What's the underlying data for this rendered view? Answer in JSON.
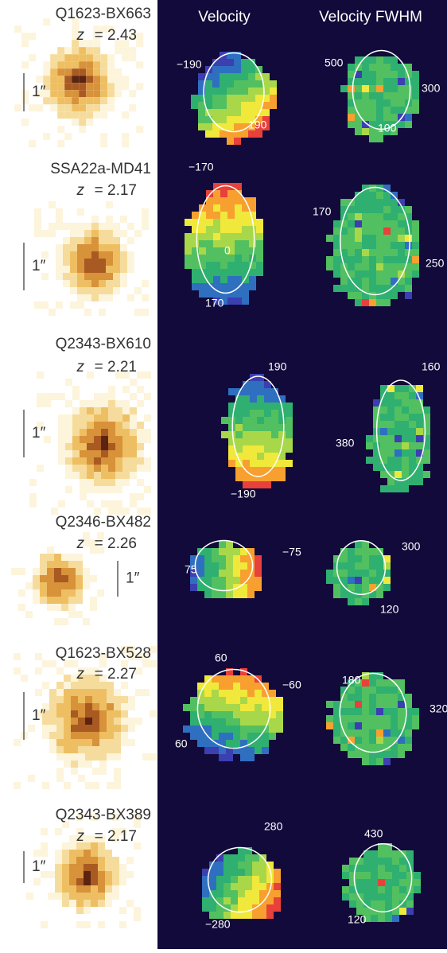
{
  "headers": {
    "velocity": "Velocity",
    "fwhm": "Velocity FWHM"
  },
  "redshift_symbol": "z",
  "rows": [
    {
      "name": "Q1623-BX663",
      "redshift": "= 2.43",
      "scale": "1″",
      "velocity_labels": [
        "−190",
        "190"
      ],
      "fwhm_labels": [
        "500",
        "300",
        "100"
      ]
    },
    {
      "name": "SSA22a-MD41",
      "redshift": "= 2.17",
      "scale": "1″",
      "velocity_labels": [
        "−170",
        "0",
        "170"
      ],
      "fwhm_labels": [
        "170",
        "250"
      ]
    },
    {
      "name": "Q2343-BX610",
      "redshift": "= 2.21",
      "scale": "1″",
      "velocity_labels": [
        "190",
        "−190"
      ],
      "fwhm_labels": [
        "160",
        "380"
      ]
    },
    {
      "name": "Q2346-BX482",
      "redshift": "= 2.26",
      "scale": "1″",
      "velocity_labels": [
        "−75",
        "75"
      ],
      "fwhm_labels": [
        "300",
        "120"
      ]
    },
    {
      "name": "Q1623-BX528",
      "redshift": "= 2.27",
      "scale": "1″",
      "velocity_labels": [
        "60",
        "−60",
        "60"
      ],
      "fwhm_labels": [
        "180",
        "320"
      ]
    },
    {
      "name": "Q2343-BX389",
      "redshift": "= 2.17",
      "scale": "1″",
      "velocity_labels": [
        "280",
        "−280"
      ],
      "fwhm_labels": [
        "430",
        "120"
      ]
    }
  ]
}
